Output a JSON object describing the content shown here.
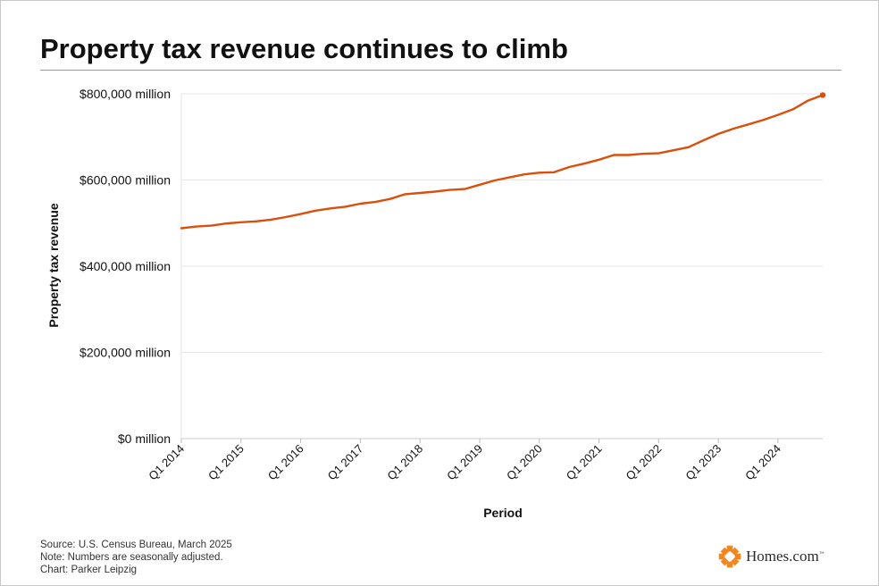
{
  "page": {
    "title": "Property tax revenue continues to climb",
    "source": "Source: U.S. Census Bureau, March 2025",
    "note": "Note: Numbers are seasonally adjusted.",
    "credit": "Chart: Parker Leipzig",
    "logo_text": "Homes.com",
    "logo_tm": "™"
  },
  "colors": {
    "line": "#d94f0b",
    "accent": "#f4861f",
    "grid": "#e6e6e6"
  },
  "chart_data": {
    "type": "line",
    "title": "Property tax revenue continues to climb",
    "xlabel": "Period",
    "ylabel": "Property tax revenue",
    "ylim": [
      0,
      800000
    ],
    "yticks": [
      0,
      200000,
      400000,
      600000,
      800000
    ],
    "ytick_labels": [
      "$0 million",
      "$200,000 million",
      "$400,000 million",
      "$600,000 million",
      "$800,000 million"
    ],
    "xtick_labels": [
      "Q1 2014",
      "Q1 2015",
      "Q1 2016",
      "Q1 2017",
      "Q1 2018",
      "Q1 2019",
      "Q1 2020",
      "Q1 2021",
      "Q1 2022",
      "Q1 2023",
      "Q1 2024"
    ],
    "grid": true,
    "x": [
      "Q1 2014",
      "Q2 2014",
      "Q3 2014",
      "Q4 2014",
      "Q1 2015",
      "Q2 2015",
      "Q3 2015",
      "Q4 2015",
      "Q1 2016",
      "Q2 2016",
      "Q3 2016",
      "Q4 2016",
      "Q1 2017",
      "Q2 2017",
      "Q3 2017",
      "Q4 2017",
      "Q1 2018",
      "Q2 2018",
      "Q3 2018",
      "Q4 2018",
      "Q1 2019",
      "Q2 2019",
      "Q3 2019",
      "Q4 2019",
      "Q1 2020",
      "Q2 2020",
      "Q3 2020",
      "Q4 2020",
      "Q1 2021",
      "Q2 2021",
      "Q3 2021",
      "Q4 2021",
      "Q1 2022",
      "Q2 2022",
      "Q3 2022",
      "Q4 2022",
      "Q1 2023",
      "Q2 2023",
      "Q3 2023",
      "Q4 2023",
      "Q1 2024",
      "Q2 2024",
      "Q3 2024",
      "Q4 2024"
    ],
    "series": [
      {
        "values": [
          488000,
          492000,
          494000,
          499000,
          502000,
          504000,
          508000,
          514000,
          521000,
          529000,
          534000,
          538000,
          545000,
          549000,
          556000,
          567000,
          570000,
          573000,
          577000,
          579000,
          589000,
          599000,
          606000,
          613000,
          617000,
          618000,
          630000,
          638000,
          647000,
          658000,
          658000,
          661000,
          662000,
          669000,
          676000,
          692000,
          707000,
          719000,
          729000,
          739000,
          751000,
          764000,
          784000,
          797000
        ]
      }
    ]
  }
}
